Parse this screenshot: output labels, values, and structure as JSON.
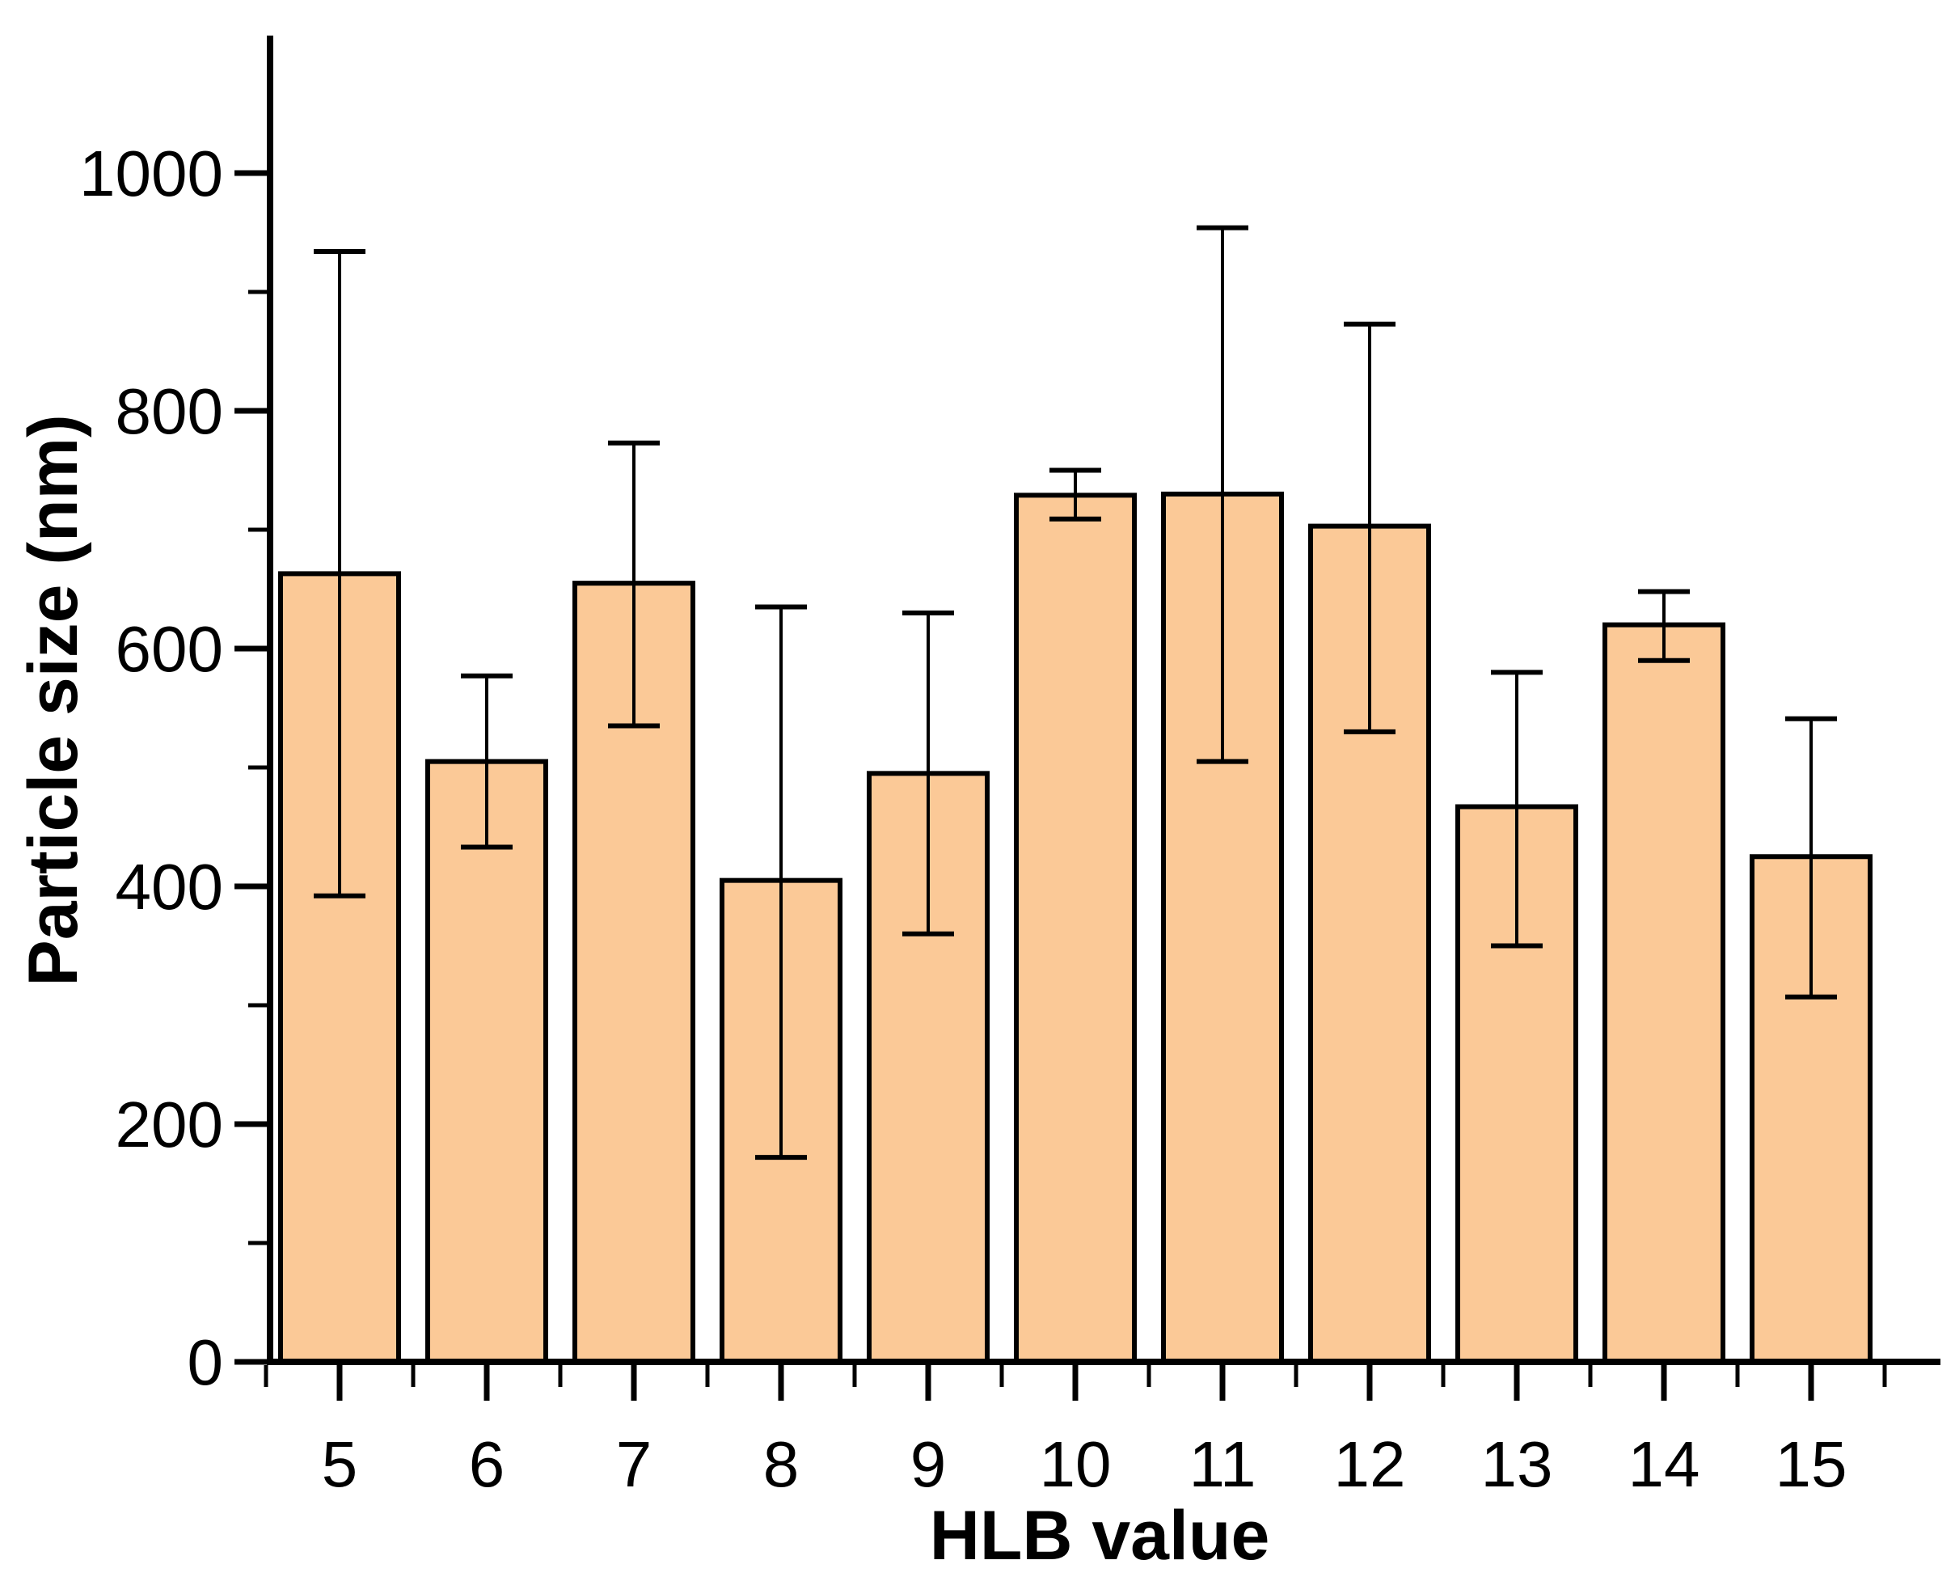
{
  "chart_data": {
    "type": "bar",
    "title": "",
    "xlabel": "HLB value",
    "ylabel": "Particle size (nm)",
    "categories": [
      5,
      6,
      7,
      8,
      9,
      10,
      11,
      12,
      13,
      14,
      15
    ],
    "series": [
      {
        "name": "Particle size",
        "values": [
          663,
          505,
          655,
          405,
          495,
          729,
          730,
          703,
          467,
          620,
          425
        ],
        "error_plus": [
          271,
          72,
          118,
          230,
          135,
          21,
          224,
          170,
          113,
          28,
          116
        ],
        "error_minus": [
          271,
          72,
          120,
          233,
          135,
          20,
          225,
          173,
          117,
          30,
          118
        ]
      }
    ],
    "ylim": [
      0,
      1110
    ],
    "y_major_ticks": [
      0,
      200,
      400,
      600,
      800,
      1000
    ],
    "y_minor_ticks": [
      100,
      300,
      500,
      700,
      900
    ],
    "grid": "off",
    "legend_position": "none",
    "bar_fill_color": "#FBC997",
    "bar_stroke_color": "#000000",
    "axis_color": "#000000",
    "background_color": "#FFFFFF"
  }
}
